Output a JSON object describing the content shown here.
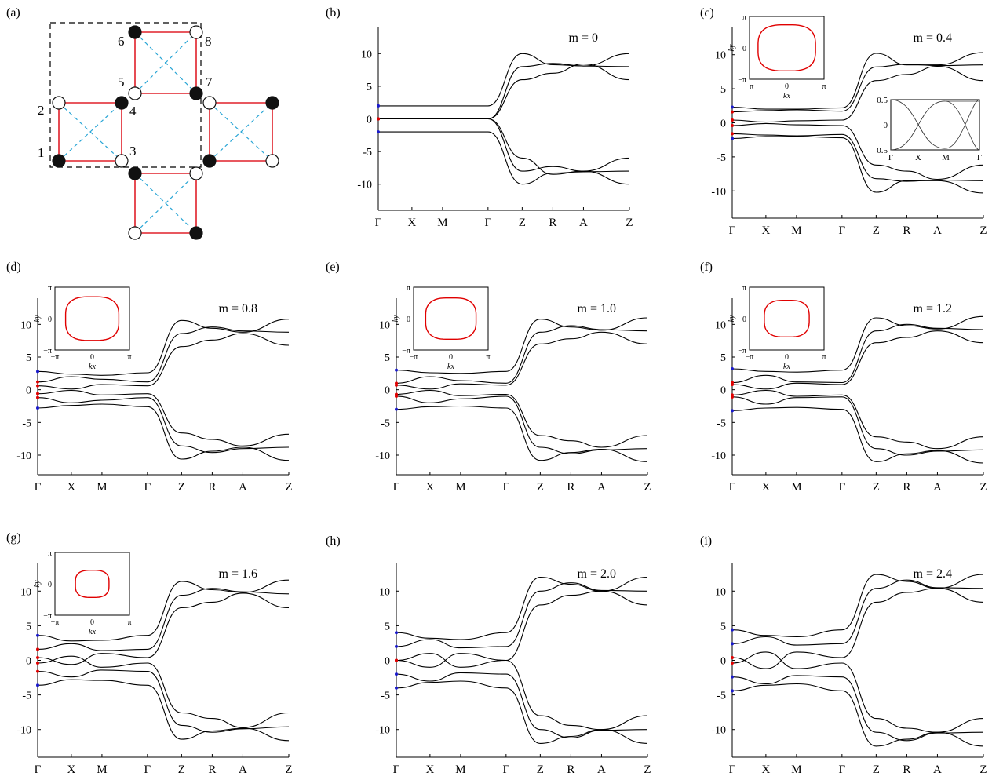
{
  "figure": {
    "k_labels": [
      "Γ",
      "X",
      "M",
      "Γ",
      "Z",
      "R",
      "A",
      "Z"
    ],
    "y_ticks": [
      10,
      5,
      0,
      -5,
      -10
    ],
    "colors": {
      "band": "#000000",
      "fermi": "#e00000",
      "edge": "#1a1acc"
    }
  },
  "panel_a": {
    "label": "(a)",
    "site_numbers": [
      "1",
      "2",
      "3",
      "4",
      "5",
      "6",
      "7",
      "8"
    ],
    "colors": {
      "bond": "#e0202a",
      "diag": "#2aa6d6",
      "box": "#000000"
    }
  },
  "chart_data": [
    {
      "panel": "(b)",
      "type": "line",
      "m_label": "m = 0",
      "m": 0.0,
      "xlabels": [
        "Γ",
        "X",
        "M",
        "Γ",
        "Z",
        "R",
        "A",
        "Z"
      ],
      "ylim": [
        -14,
        14
      ],
      "yticks": [
        10,
        5,
        0,
        -5,
        -10
      ],
      "series": [
        {
          "values": [
            2,
            2,
            2,
            2,
            10,
            8.3,
            8.1,
            8
          ]
        },
        {
          "values": [
            0,
            0,
            0,
            0,
            8,
            8.5,
            8.1,
            10
          ]
        },
        {
          "values": [
            0,
            0,
            0,
            0,
            6,
            7,
            8.4,
            6
          ]
        },
        {
          "values": [
            -2,
            -2,
            -2,
            -2,
            -10,
            -8.3,
            -8.1,
            -8
          ]
        },
        {
          "values": [
            0,
            0,
            0,
            0,
            -8,
            -7.3,
            -8,
            -6
          ]
        },
        {
          "values": [
            0,
            0,
            0,
            0,
            -6,
            -8.5,
            -8,
            -10
          ]
        }
      ],
      "inset": null
    },
    {
      "panel": "(c)",
      "type": "line",
      "m_label": "m = 0.4",
      "m": 0.4,
      "xlabels": [
        "Γ",
        "X",
        "M",
        "Γ",
        "Z",
        "R",
        "A",
        "Z"
      ],
      "ylim": [
        -14,
        14
      ],
      "yticks": [
        10,
        5,
        0,
        -5,
        -10
      ],
      "series": [
        {
          "values": [
            2.3,
            2,
            2,
            2.2,
            10.2,
            8.5,
            8.5,
            10.3
          ]
        },
        {
          "values": [
            1.6,
            1.8,
            1.9,
            1.7,
            8.2,
            8.6,
            8.4,
            8.5
          ]
        },
        {
          "values": [
            0.4,
            0.1,
            0.3,
            0.4,
            6.2,
            7.1,
            8.3,
            6.2
          ]
        },
        {
          "values": [
            -0.4,
            -0.1,
            -0.3,
            -0.4,
            -6.2,
            -7.1,
            -8.3,
            -6.2
          ]
        },
        {
          "values": [
            -1.6,
            -1.8,
            -1.9,
            -1.7,
            -8.2,
            -8.6,
            -8.4,
            -8.5
          ]
        },
        {
          "values": [
            -2.3,
            -2,
            -2,
            -2.2,
            -10.2,
            -8.5,
            -8.5,
            -10.3
          ]
        }
      ],
      "inset": {
        "contour_ry": 0.78,
        "contour_rx": 0.82,
        "xlabel": "kx",
        "ylabel": "ky"
      },
      "bands_inset": {
        "xlabels": [
          "Γ",
          "X",
          "M",
          "Γ"
        ],
        "yticks": [
          "0.5",
          "0",
          "-0.5"
        ]
      }
    },
    {
      "panel": "(d)",
      "type": "line",
      "m_label": "m = 0.8",
      "m": 0.8,
      "xlabels": [
        "Γ",
        "X",
        "M",
        "Γ",
        "Z",
        "R",
        "A",
        "Z"
      ],
      "ylim": [
        -13,
        14
      ],
      "yticks": [
        10,
        5,
        0,
        -5,
        -10
      ],
      "series": [
        {
          "values": [
            2.8,
            2.4,
            2.2,
            2.6,
            10.6,
            9.4,
            8.8,
            10.8
          ]
        },
        {
          "values": [
            1.2,
            2,
            1.6,
            1.2,
            8.6,
            9.6,
            9,
            8.8
          ]
        },
        {
          "values": [
            0.6,
            0.1,
            0.8,
            0.6,
            6.6,
            7.6,
            8.6,
            6.8
          ]
        },
        {
          "values": [
            -0.6,
            -0.1,
            -0.8,
            -0.6,
            -6.6,
            -7.6,
            -8.6,
            -6.8
          ]
        },
        {
          "values": [
            -1.2,
            -2,
            -1.6,
            -1.2,
            -8.6,
            -9.6,
            -9,
            -8.8
          ]
        },
        {
          "values": [
            -2.8,
            -2.4,
            -2.2,
            -2.6,
            -10.6,
            -9.4,
            -8.8,
            -10.8
          ]
        }
      ],
      "inset": {
        "contour_ry": 0.74,
        "contour_rx": 0.76,
        "xlabel": "kx",
        "ylabel": "ky"
      }
    },
    {
      "panel": "(e)",
      "type": "line",
      "m_label": "m = 1.0",
      "m": 1.0,
      "xlabels": [
        "Γ",
        "X",
        "M",
        "Γ",
        "Z",
        "R",
        "A",
        "Z"
      ],
      "ylim": [
        -13,
        14
      ],
      "yticks": [
        10,
        5,
        0,
        -5,
        -10
      ],
      "series": [
        {
          "values": [
            3,
            2.6,
            2.5,
            2.8,
            10.8,
            9.6,
            9.1,
            11
          ]
        },
        {
          "values": [
            1,
            2,
            1.4,
            1,
            8.8,
            9.8,
            9.2,
            9
          ]
        },
        {
          "values": [
            0.7,
            0.1,
            0.9,
            0.7,
            7,
            7.8,
            8.8,
            7
          ]
        },
        {
          "values": [
            -0.7,
            -0.1,
            -0.9,
            -0.7,
            -7,
            -7.8,
            -8.8,
            -7
          ]
        },
        {
          "values": [
            -1,
            -2,
            -1.4,
            -1,
            -8.8,
            -9.8,
            -9.2,
            -9
          ]
        },
        {
          "values": [
            -3,
            -2.6,
            -2.5,
            -2.8,
            -10.8,
            -9.6,
            -9.1,
            -11
          ]
        }
      ],
      "inset": {
        "contour_ry": 0.7,
        "contour_rx": 0.72,
        "xlabel": "kx",
        "ylabel": "ky"
      }
    },
    {
      "panel": "(f)",
      "type": "line",
      "m_label": "m = 1.2",
      "m": 1.2,
      "xlabels": [
        "Γ",
        "X",
        "M",
        "Γ",
        "Z",
        "R",
        "A",
        "Z"
      ],
      "ylim": [
        -13,
        14
      ],
      "yticks": [
        10,
        5,
        0,
        -5,
        -10
      ],
      "series": [
        {
          "values": [
            3.2,
            2.8,
            2.7,
            3,
            11,
            9.8,
            9.3,
            11.2
          ]
        },
        {
          "values": [
            1.1,
            2.2,
            1.2,
            1.1,
            9,
            10,
            9.4,
            9.2
          ]
        },
        {
          "values": [
            0.8,
            0.1,
            1,
            0.8,
            7.2,
            8,
            9,
            7.2
          ]
        },
        {
          "values": [
            -0.8,
            -0.1,
            -1,
            -0.8,
            -7.2,
            -8,
            -9,
            -7.2
          ]
        },
        {
          "values": [
            -1.1,
            -2.2,
            -1.2,
            -1.1,
            -9,
            -10,
            -9.4,
            -9.2
          ]
        },
        {
          "values": [
            -3.2,
            -2.8,
            -2.7,
            -3,
            -11,
            -9.8,
            -9.3,
            -11.2
          ]
        }
      ],
      "inset": {
        "contour_ry": 0.62,
        "contour_rx": 0.64,
        "xlabel": "kx",
        "ylabel": "ky"
      }
    },
    {
      "panel": "(g)",
      "type": "line",
      "m_label": "m = 1.6",
      "m": 1.6,
      "xlabels": [
        "Γ",
        "X",
        "M",
        "Γ",
        "Z",
        "R",
        "A",
        "Z"
      ],
      "ylim": [
        -14,
        14
      ],
      "yticks": [
        10,
        5,
        0,
        -5,
        -10
      ],
      "series": [
        {
          "values": [
            3.6,
            2.8,
            2.9,
            3.6,
            11.4,
            10.2,
            9.8,
            11.6
          ]
        },
        {
          "values": [
            1.6,
            2.4,
            1.4,
            1.6,
            9.4,
            10.4,
            9.9,
            9.6
          ]
        },
        {
          "values": [
            0.4,
            -0.6,
            1,
            0.4,
            7.6,
            8.4,
            9.7,
            7.6
          ]
        },
        {
          "values": [
            -0.4,
            0.6,
            -1,
            -0.4,
            -7.6,
            -8.4,
            -9.7,
            -7.6
          ]
        },
        {
          "values": [
            -1.6,
            -2.4,
            -1.4,
            -1.6,
            -9.4,
            -10.4,
            -9.9,
            -9.6
          ]
        },
        {
          "values": [
            -3.6,
            -2.8,
            -2.9,
            -3.6,
            -11.4,
            -10.2,
            -9.8,
            -11.6
          ]
        }
      ],
      "inset": {
        "contour_ry": 0.46,
        "contour_rx": 0.48,
        "xlabel": "kx",
        "ylabel": "ky"
      }
    },
    {
      "panel": "(h)",
      "type": "line",
      "m_label": "m = 2.0",
      "m": 2.0,
      "xlabels": [
        "Γ",
        "X",
        "M",
        "Γ",
        "Z",
        "R",
        "A",
        "Z"
      ],
      "ylim": [
        -14,
        14
      ],
      "yticks": [
        10,
        5,
        0,
        -5,
        -10
      ],
      "series": [
        {
          "values": [
            4,
            3.2,
            3,
            4,
            12,
            11,
            10,
            12
          ]
        },
        {
          "values": [
            2,
            3,
            1.8,
            2,
            10,
            11.2,
            10.1,
            10
          ]
        },
        {
          "values": [
            0,
            -1,
            1,
            0,
            8,
            9.4,
            10,
            8
          ]
        },
        {
          "values": [
            0,
            1,
            -1,
            0,
            -8,
            -9.4,
            -10,
            -8
          ]
        },
        {
          "values": [
            -2,
            -3,
            -1.8,
            -2,
            -10,
            -11.2,
            -10.1,
            -10
          ]
        },
        {
          "values": [
            -4,
            -3.2,
            -3,
            -4,
            -12,
            -11,
            -10,
            -12
          ]
        }
      ],
      "inset": null
    },
    {
      "panel": "(i)",
      "type": "line",
      "m_label": "m = 2.4",
      "m": 2.4,
      "xlabels": [
        "Γ",
        "X",
        "M",
        "Γ",
        "Z",
        "R",
        "A",
        "Z"
      ],
      "ylim": [
        -14,
        14
      ],
      "yticks": [
        10,
        5,
        0,
        -5,
        -10
      ],
      "series": [
        {
          "values": [
            4.4,
            3.6,
            3.4,
            4.4,
            12.4,
            11.4,
            10.4,
            12.4
          ]
        },
        {
          "values": [
            2.4,
            3.4,
            2.2,
            2.4,
            10.4,
            11.6,
            10.5,
            10.4
          ]
        },
        {
          "values": [
            0.4,
            -1.2,
            1.2,
            0.4,
            8.4,
            9.8,
            10.4,
            8.4
          ]
        },
        {
          "values": [
            -0.4,
            1.2,
            -1.2,
            -0.4,
            -8.4,
            -9.8,
            -10.4,
            -8.4
          ]
        },
        {
          "values": [
            -2.4,
            -3.4,
            -2.2,
            -2.4,
            -10.4,
            -11.6,
            -10.5,
            -10.4
          ]
        },
        {
          "values": [
            -4.4,
            -3.6,
            -3.4,
            -4.4,
            -12.4,
            -11.4,
            -10.4,
            -12.4
          ]
        }
      ],
      "inset": null
    }
  ]
}
